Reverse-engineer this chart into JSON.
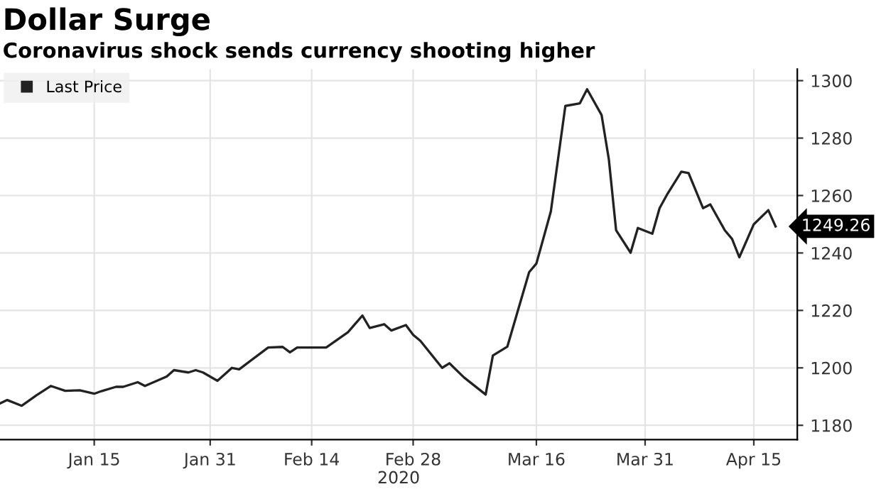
{
  "chart_data": {
    "type": "line",
    "title": "Dollar Surge",
    "subtitle": "Coronavirus shock sends currency shooting higher",
    "xlabel": "2020",
    "x": [
      "2020-01-02",
      "2020-01-03",
      "2020-01-05",
      "2020-01-07",
      "2020-01-09",
      "2020-01-11",
      "2020-01-13",
      "2020-01-15",
      "2020-01-16",
      "2020-01-18",
      "2020-01-19",
      "2020-01-21",
      "2020-01-22",
      "2020-01-25",
      "2020-01-26",
      "2020-01-28",
      "2020-01-29",
      "2020-01-30",
      "2020-02-01",
      "2020-02-03",
      "2020-02-04",
      "2020-02-08",
      "2020-02-10",
      "2020-02-11",
      "2020-02-12",
      "2020-02-16",
      "2020-02-19",
      "2020-02-21",
      "2020-02-22",
      "2020-02-24",
      "2020-02-25",
      "2020-02-27",
      "2020-02-28",
      "2020-02-29",
      "2020-03-03",
      "2020-03-04",
      "2020-03-06",
      "2020-03-09",
      "2020-03-10",
      "2020-03-12",
      "2020-03-15",
      "2020-03-16",
      "2020-03-18",
      "2020-03-20",
      "2020-03-22",
      "2020-03-23",
      "2020-03-25",
      "2020-03-26",
      "2020-03-27",
      "2020-03-29",
      "2020-03-30",
      "2020-04-01",
      "2020-04-02",
      "2020-04-03",
      "2020-04-05",
      "2020-04-06",
      "2020-04-08",
      "2020-04-09",
      "2020-04-11",
      "2020-04-12",
      "2020-04-13",
      "2020-04-15",
      "2020-04-17",
      "2020-04-18"
    ],
    "series": [
      {
        "name": "Last Price",
        "color": "#222222",
        "values": [
          1187.6,
          1188.8,
          1186.8,
          1190.4,
          1193.7,
          1192,
          1192.2,
          1191,
          1191.9,
          1193.4,
          1193.4,
          1195,
          1193.7,
          1197,
          1199.2,
          1198.4,
          1199.2,
          1198.4,
          1195.5,
          1200,
          1199.5,
          1207.1,
          1207.3,
          1205.4,
          1207.1,
          1207.1,
          1212.4,
          1218.2,
          1213.9,
          1215.2,
          1213,
          1214.9,
          1211.5,
          1209.4,
          1200,
          1201.6,
          1196.7,
          1190.7,
          1204.3,
          1207.4,
          1233.3,
          1236.3,
          1254.5,
          1291.2,
          1292.1,
          1297,
          1288,
          1272.6,
          1247.9,
          1240.1,
          1248.7,
          1246.7,
          1255.6,
          1260.2,
          1268.3,
          1267.8,
          1255.6,
          1256.9,
          1247.9,
          1244.9,
          1238.5,
          1250,
          1254.9,
          1249.26
        ]
      }
    ],
    "xlim": [
      "2020-01-02",
      "2020-04-21"
    ],
    "xticks": [
      {
        "value": "2020-01-15",
        "label": "Jan 15"
      },
      {
        "value": "2020-01-31",
        "label": "Jan 31"
      },
      {
        "value": "2020-02-14",
        "label": "Feb 14"
      },
      {
        "value": "2020-02-28",
        "label": "Feb 28"
      },
      {
        "value": "2020-03-16",
        "label": "Mar 16"
      },
      {
        "value": "2020-03-31",
        "label": "Mar 31"
      },
      {
        "value": "2020-04-15",
        "label": "Apr 15"
      }
    ],
    "ylim": [
      1175,
      1304
    ],
    "yticks": [
      1180,
      1200,
      1220,
      1240,
      1260,
      1280,
      1300
    ],
    "annotations": [
      {
        "text": "1249.26",
        "x": "2020-04-18",
        "y": 1249.26
      }
    ],
    "grid": true,
    "legend": "top left",
    "marker": "none",
    "line_style": "solid"
  }
}
